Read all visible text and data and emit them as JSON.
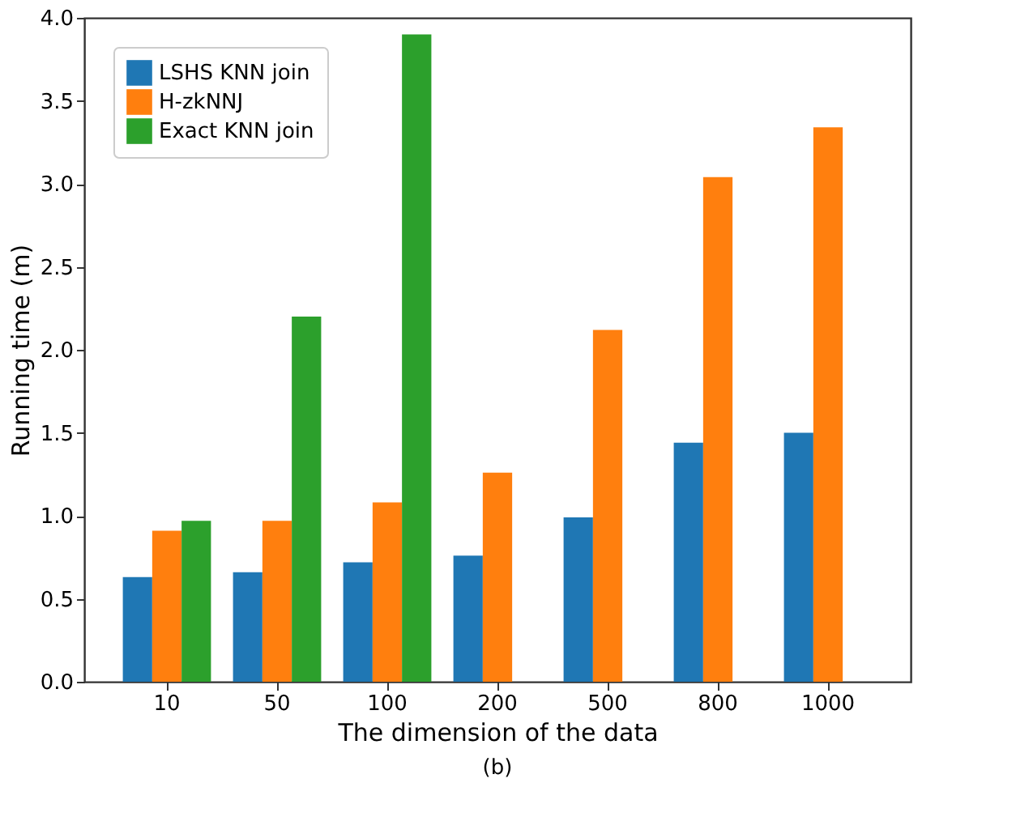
{
  "chart_data": {
    "type": "bar",
    "xlabel": "The dimension of the data",
    "ylabel": "Running time (m)",
    "categories": [
      "10",
      "50",
      "100",
      "200",
      "500",
      "800",
      "1000"
    ],
    "series": [
      {
        "name": "LSHS KNN join",
        "color": "#1f77b4",
        "values": [
          0.63,
          0.66,
          0.72,
          0.76,
          0.99,
          1.44,
          1.5
        ]
      },
      {
        "name": "H-zkNNJ",
        "color": "#ff7f0e",
        "values": [
          0.91,
          0.97,
          1.08,
          1.26,
          2.12,
          3.04,
          3.34
        ]
      },
      {
        "name": "Exact KNN join",
        "color": "#2ca02c",
        "values": [
          0.97,
          2.2,
          3.9,
          null,
          null,
          null,
          null
        ]
      }
    ],
    "ylim": [
      0,
      4
    ],
    "yticks": [
      {
        "value": 0,
        "label": "0.0"
      },
      0.5,
      {
        "value": 1,
        "label": "1.0"
      },
      1.5,
      {
        "value": 2,
        "label": "2.0"
      },
      2.5,
      {
        "value": 3,
        "label": "3.0"
      },
      3.5,
      {
        "value": 4,
        "label": "4.0"
      }
    ],
    "grid": false,
    "legend": "top left",
    "annotations": [
      "(b)"
    ]
  }
}
